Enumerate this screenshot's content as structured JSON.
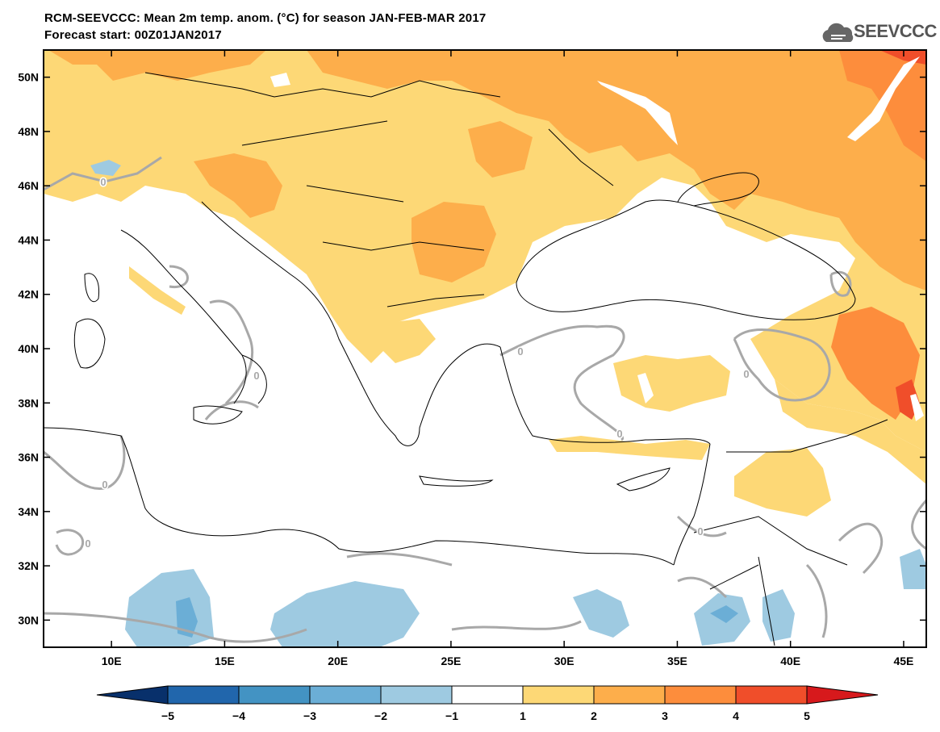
{
  "header": {
    "title": "RCM-SEEVCCC: Mean 2m temp. anom. (°C) for season JAN-FEB-MAR 2017",
    "subtitle": "Forecast start: 00Z01JAN2017",
    "logo_text": "SEEVCCC"
  },
  "map": {
    "lon_range": [
      7,
      46
    ],
    "lat_range": [
      29,
      51
    ],
    "lon_ticks": [
      "10E",
      "15E",
      "20E",
      "25E",
      "30E",
      "35E",
      "40E",
      "45E"
    ],
    "lat_ticks": [
      "50N",
      "48N",
      "46N",
      "44N",
      "42N",
      "40N",
      "38N",
      "36N",
      "34N",
      "32N",
      "30N"
    ],
    "contour_label": "0"
  },
  "colorbar": {
    "labels": [
      "−5",
      "−4",
      "−3",
      "−2",
      "−1",
      "1",
      "2",
      "3",
      "4",
      "5"
    ],
    "colors": [
      "#08306b",
      "#2166ac",
      "#4393c3",
      "#6baed6",
      "#9ecae1",
      "#ffffff",
      "#fdd876",
      "#fdae4b",
      "#fd8d3c",
      "#f04e2a",
      "#d7191c"
    ]
  }
}
